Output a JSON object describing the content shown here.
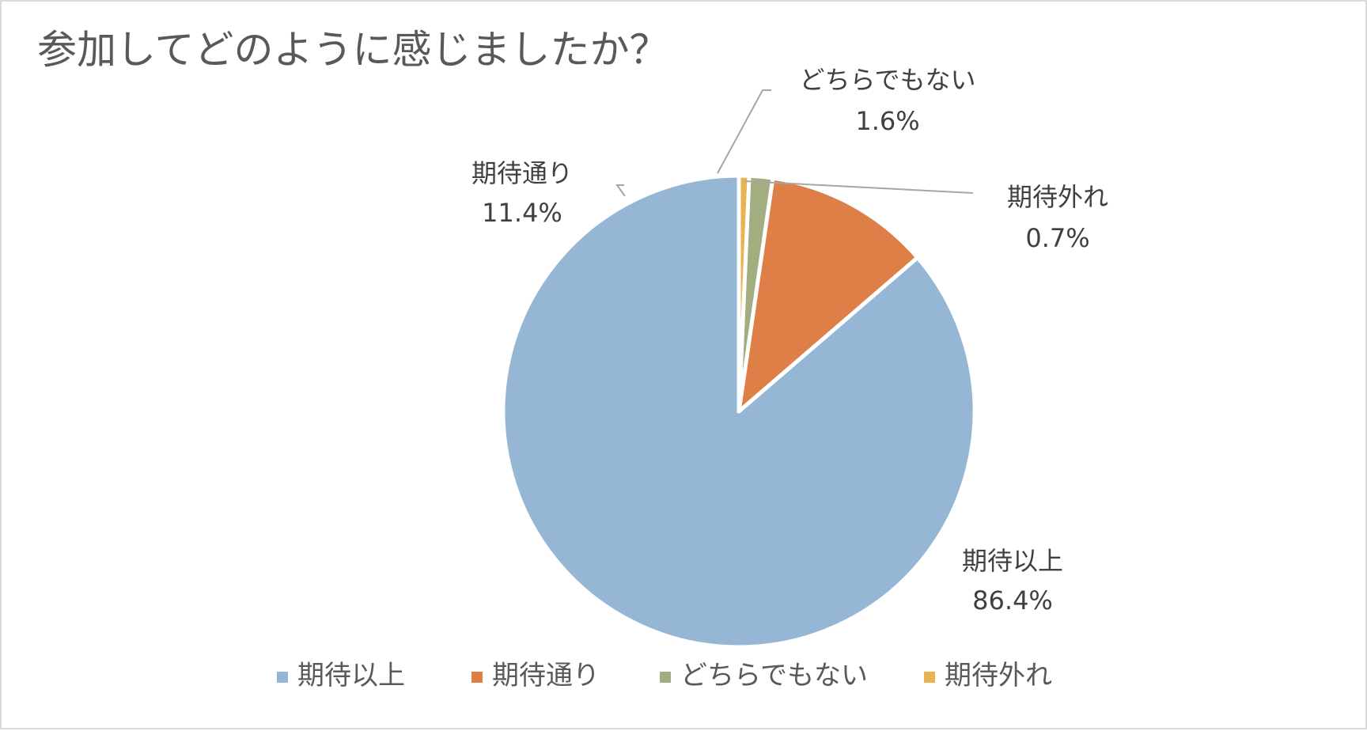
{
  "chart_data": {
    "type": "pie",
    "title": "参加してどのように感じましたか？",
    "categories": [
      "期待以上",
      "期待通り",
      "どちらでもない",
      "期待外れ"
    ],
    "values": [
      86.4,
      11.4,
      1.6,
      0.7
    ],
    "value_labels": [
      "86.4%",
      "11.4%",
      "1.6%",
      "0.7%"
    ],
    "colors": [
      "#95b6d4",
      "#dd7f46",
      "#a2ad80",
      "#e8b350"
    ],
    "start_angle_deg": 0,
    "direction": "counterclockwise",
    "legend_position": "bottom"
  }
}
